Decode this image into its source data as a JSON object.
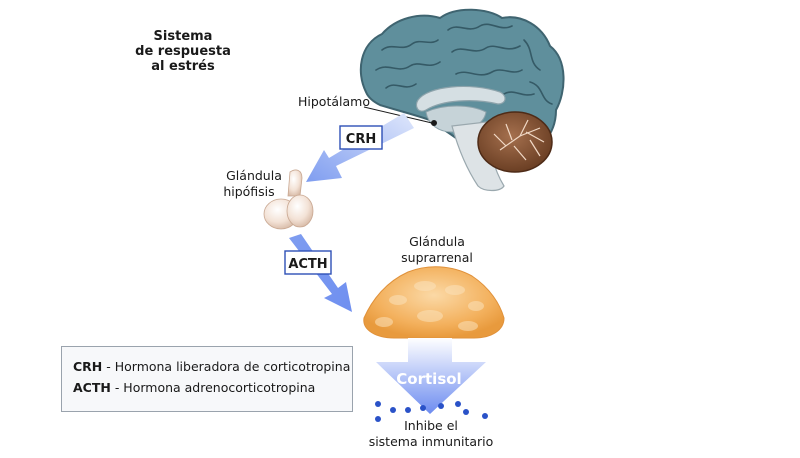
{
  "title": {
    "line1": "Sistema",
    "line2": "de respuesta",
    "line3": "al estrés"
  },
  "labels": {
    "hypothalamus": "Hipotálamo",
    "pituitary_line1": "Glándula",
    "pituitary_line2": "hipófisis",
    "adrenal_line1": "Glándula",
    "adrenal_line2": "suprarrenal",
    "crh_badge": "CRH",
    "acth_badge": "ACTH",
    "cortisol": "Cortisol",
    "inhibit_line1": "Inhibe el",
    "inhibit_line2": "sistema inmunitario"
  },
  "legend": {
    "items": [
      {
        "abbr": "CRH",
        "text": " - Hormona liberadora de corticotropina"
      },
      {
        "abbr": "ACTH",
        "text": " - Hormona adrenocorticotropina"
      }
    ]
  },
  "colors": {
    "arrow_blue": "#7f9df0",
    "brain_cortex": "#5f8f9c",
    "cerebellum": "#8b5a3c",
    "adrenal_gland": "#f3b05c",
    "pituitary": "#f2dccd",
    "dots": "#2a52c8"
  }
}
